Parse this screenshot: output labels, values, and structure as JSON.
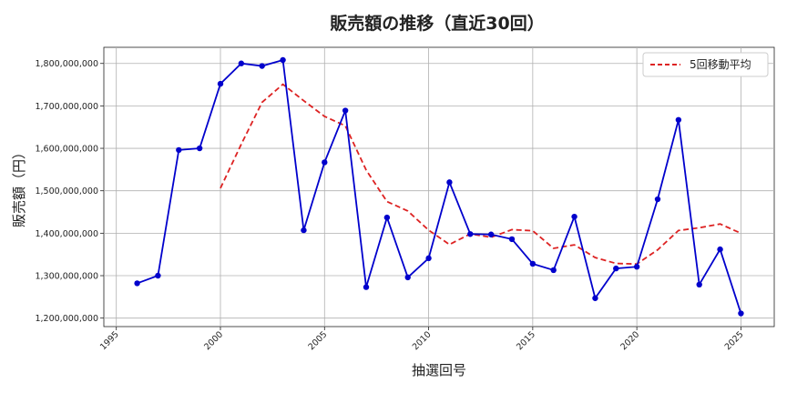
{
  "chart_data": {
    "type": "line",
    "title": "販売額の推移（直近30回）",
    "xlabel": "抽選回号",
    "ylabel": "販売額（円）",
    "xlim": [
      1994.4,
      2026.6
    ],
    "ylim": [
      1180000000,
      1838000000
    ],
    "x_ticks": [
      1995,
      2000,
      2005,
      2010,
      2015,
      2020,
      2025
    ],
    "y_ticks": [
      1200000000,
      1300000000,
      1400000000,
      1500000000,
      1600000000,
      1700000000,
      1800000000
    ],
    "x_tick_labels": [
      "1995",
      "2000",
      "2005",
      "2010",
      "2015",
      "2020",
      "2025"
    ],
    "y_tick_labels": [
      "1,200,000,000",
      "1,300,000,000",
      "1,400,000,000",
      "1,500,000,000",
      "1,600,000,000",
      "1,700,000,000",
      "1,800,000,000"
    ],
    "grid": true,
    "legend_position": "top-right",
    "x": [
      1996,
      1997,
      1998,
      1999,
      2000,
      2001,
      2002,
      2003,
      2004,
      2005,
      2006,
      2007,
      2008,
      2009,
      2010,
      2011,
      2012,
      2013,
      2014,
      2015,
      2016,
      2017,
      2018,
      2019,
      2020,
      2021,
      2022,
      2023,
      2024,
      2025
    ],
    "series": [
      {
        "name": "",
        "color": "#0000cc",
        "style": "solid-with-markers",
        "values": [
          1282000000,
          1300000000,
          1596000000,
          1600000000,
          1752000000,
          1800000000,
          1794000000,
          1808000000,
          1407000000,
          1567000000,
          1689000000,
          1273000000,
          1437000000,
          1296000000,
          1341000000,
          1520000000,
          1398000000,
          1397000000,
          1386000000,
          1328000000,
          1313000000,
          1439000000,
          1247000000,
          1317000000,
          1321000000,
          1480000000,
          1667000000,
          1279000000,
          1362000000,
          1211000000
        ]
      },
      {
        "name": "5回移動平均",
        "color": "#dd2222",
        "style": "dashed",
        "values": [
          null,
          null,
          null,
          null,
          1506000000,
          1609600000,
          1708400000,
          1750800000,
          1712200000,
          1675200000,
          1653000000,
          1548800000,
          1474600000,
          1452400000,
          1407200000,
          1373400000,
          1398400000,
          1390400000,
          1408400000,
          1405800000,
          1364400000,
          1372600000,
          1342600000,
          1328800000,
          1327400000,
          1360800000,
          1406400000,
          1412800000,
          1421800000,
          1399800000
        ]
      }
    ]
  }
}
